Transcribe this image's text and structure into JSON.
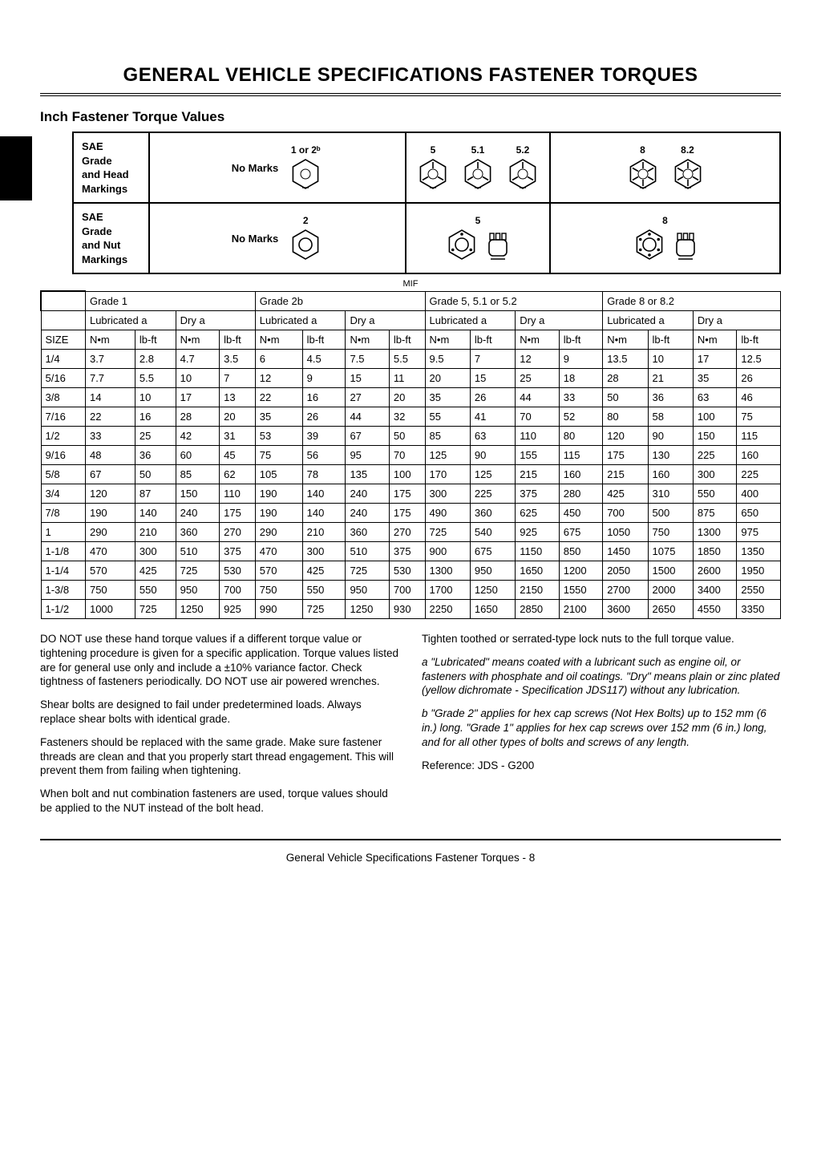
{
  "page_title": "GENERAL VEHICLE SPECIFICATIONS   FASTENER TORQUES",
  "subtitle": "Inch Fastener Torque Values",
  "mif_label": "MIF",
  "markings": {
    "head_label": "SAE\nGrade\nand Head\nMarkings",
    "nut_label": "SAE\nGrade\nand Nut\nMarkings",
    "no_marks": "No Marks",
    "head_groups": [
      {
        "label": "1 or 2ᵇ",
        "marks": 0
      },
      {
        "label": "5",
        "marks": 3
      },
      {
        "label": "5.1",
        "marks": 3
      },
      {
        "label": "5.2",
        "marks": 3
      },
      {
        "label": "8",
        "marks": 6
      },
      {
        "label": "8.2",
        "marks": 6
      }
    ],
    "nut_groups": [
      {
        "label": "2"
      },
      {
        "label": "5"
      },
      {
        "label": "8"
      }
    ]
  },
  "table": {
    "size_label": "SIZE",
    "grades": [
      "Grade 1",
      "Grade 2b",
      "Grade 5, 5.1 or 5.2",
      "Grade 8 or 8.2"
    ],
    "conditions": [
      "Lubricated a",
      "Dry a"
    ],
    "units": [
      "N•m",
      "lb-ft"
    ],
    "rows": [
      {
        "size": "1/4",
        "v": [
          "3.7",
          "2.8",
          "4.7",
          "3.5",
          "6",
          "4.5",
          "7.5",
          "5.5",
          "9.5",
          "7",
          "12",
          "9",
          "13.5",
          "10",
          "17",
          "12.5"
        ]
      },
      {
        "size": "5/16",
        "v": [
          "7.7",
          "5.5",
          "10",
          "7",
          "12",
          "9",
          "15",
          "11",
          "20",
          "15",
          "25",
          "18",
          "28",
          "21",
          "35",
          "26"
        ]
      },
      {
        "size": "3/8",
        "v": [
          "14",
          "10",
          "17",
          "13",
          "22",
          "16",
          "27",
          "20",
          "35",
          "26",
          "44",
          "33",
          "50",
          "36",
          "63",
          "46"
        ]
      },
      {
        "size": "7/16",
        "v": [
          "22",
          "16",
          "28",
          "20",
          "35",
          "26",
          "44",
          "32",
          "55",
          "41",
          "70",
          "52",
          "80",
          "58",
          "100",
          "75"
        ]
      },
      {
        "size": "1/2",
        "v": [
          "33",
          "25",
          "42",
          "31",
          "53",
          "39",
          "67",
          "50",
          "85",
          "63",
          "110",
          "80",
          "120",
          "90",
          "150",
          "115"
        ]
      },
      {
        "size": "9/16",
        "v": [
          "48",
          "36",
          "60",
          "45",
          "75",
          "56",
          "95",
          "70",
          "125",
          "90",
          "155",
          "115",
          "175",
          "130",
          "225",
          "160"
        ]
      },
      {
        "size": "5/8",
        "v": [
          "67",
          "50",
          "85",
          "62",
          "105",
          "78",
          "135",
          "100",
          "170",
          "125",
          "215",
          "160",
          "215",
          "160",
          "300",
          "225"
        ]
      },
      {
        "size": "3/4",
        "v": [
          "120",
          "87",
          "150",
          "110",
          "190",
          "140",
          "240",
          "175",
          "300",
          "225",
          "375",
          "280",
          "425",
          "310",
          "550",
          "400"
        ]
      },
      {
        "size": "7/8",
        "v": [
          "190",
          "140",
          "240",
          "175",
          "190",
          "140",
          "240",
          "175",
          "490",
          "360",
          "625",
          "450",
          "700",
          "500",
          "875",
          "650"
        ]
      },
      {
        "size": "1",
        "v": [
          "290",
          "210",
          "360",
          "270",
          "290",
          "210",
          "360",
          "270",
          "725",
          "540",
          "925",
          "675",
          "1050",
          "750",
          "1300",
          "975"
        ]
      },
      {
        "size": "1-1/8",
        "v": [
          "470",
          "300",
          "510",
          "375",
          "470",
          "300",
          "510",
          "375",
          "900",
          "675",
          "1150",
          "850",
          "1450",
          "1075",
          "1850",
          "1350"
        ]
      },
      {
        "size": "1-1/4",
        "v": [
          "570",
          "425",
          "725",
          "530",
          "570",
          "425",
          "725",
          "530",
          "1300",
          "950",
          "1650",
          "1200",
          "2050",
          "1500",
          "2600",
          "1950"
        ]
      },
      {
        "size": "1-3/8",
        "v": [
          "750",
          "550",
          "950",
          "700",
          "750",
          "550",
          "950",
          "700",
          "1700",
          "1250",
          "2150",
          "1550",
          "2700",
          "2000",
          "3400",
          "2550"
        ]
      },
      {
        "size": "1-1/2",
        "v": [
          "1000",
          "725",
          "1250",
          "925",
          "990",
          "725",
          "1250",
          "930",
          "2250",
          "1650",
          "2850",
          "2100",
          "3600",
          "2650",
          "4550",
          "3350"
        ]
      }
    ]
  },
  "notes": {
    "left": [
      "DO NOT use these hand torque values if a different torque value or tightening procedure is given for a specific application. Torque values listed are for general use only and include a ±10% variance factor. Check tightness of fasteners periodically. DO NOT use air powered wrenches.",
      "Shear bolts are designed to fail under predetermined loads. Always replace shear bolts with identical grade.",
      "Fasteners should be replaced with the same grade. Make sure fastener threads are clean and that you properly start thread engagement. This will prevent them from failing when tightening.",
      "When bolt and nut combination fasteners are used, torque values should be applied to the NUT instead of the bolt head."
    ],
    "right": [
      "Tighten toothed or serrated-type lock nuts to the full torque value.",
      "a \"Lubricated\" means coated with a lubricant such as engine oil, or fasteners with phosphate and oil coatings. \"Dry\" means plain or zinc plated (yellow dichromate - Specification JDS117) without any lubrication.",
      "b \"Grade 2\" applies for hex cap screws (Not Hex Bolts) up to 152 mm (6 in.) long. \"Grade 1\" applies for hex cap screws over 152 mm (6 in.) long, and for all other types of bolts and screws of any length.",
      "Reference: JDS - G200"
    ],
    "right_italic": [
      false,
      true,
      true,
      false
    ]
  },
  "footer": "General Vehicle Specifications   Fastener Torques  - 8",
  "colors": {
    "text": "#000000",
    "background": "#ffffff",
    "border": "#000000"
  }
}
